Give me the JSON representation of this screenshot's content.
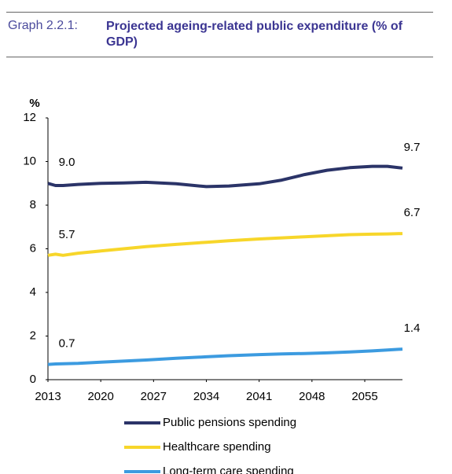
{
  "header": {
    "label": "Graph 2.2.1:",
    "title": "Projected ageing-related public expenditure (% of GDP)"
  },
  "chart_data": {
    "type": "line",
    "y_unit": "%",
    "x": [
      2013,
      2014,
      2015,
      2017,
      2020,
      2023,
      2026,
      2030,
      2034,
      2037,
      2041,
      2044,
      2047,
      2050,
      2053,
      2056,
      2058,
      2060
    ],
    "xlim": [
      2013,
      2060
    ],
    "xticks": [
      2013,
      2020,
      2027,
      2034,
      2041,
      2048,
      2055
    ],
    "ylim": [
      0,
      12
    ],
    "yticks": [
      0,
      2,
      4,
      6,
      8,
      10,
      12
    ],
    "series": [
      {
        "name": "Public pensions spending",
        "color": "#2b3468",
        "values": [
          9.0,
          8.9,
          8.9,
          8.95,
          9.0,
          9.02,
          9.05,
          8.98,
          8.85,
          8.88,
          8.98,
          9.15,
          9.4,
          9.6,
          9.72,
          9.78,
          9.78,
          9.7
        ],
        "value_labels": [
          "9.0",
          null,
          null,
          null,
          null,
          null,
          null,
          null,
          null,
          null,
          null,
          null,
          null,
          null,
          null,
          null,
          null,
          "9.7"
        ]
      },
      {
        "name": "Healthcare spending",
        "color": "#f7d62a",
        "values": [
          5.7,
          5.75,
          5.7,
          5.8,
          5.9,
          6.0,
          6.1,
          6.2,
          6.3,
          6.37,
          6.45,
          6.5,
          6.55,
          6.6,
          6.65,
          6.67,
          6.68,
          6.7
        ],
        "value_labels": [
          "5.7",
          null,
          null,
          null,
          null,
          null,
          null,
          null,
          null,
          null,
          null,
          null,
          null,
          null,
          null,
          null,
          null,
          "6.7"
        ]
      },
      {
        "name": "Long-term care spending",
        "color": "#3c9be0",
        "values": [
          0.7,
          0.72,
          0.73,
          0.75,
          0.8,
          0.85,
          0.9,
          0.98,
          1.05,
          1.1,
          1.15,
          1.18,
          1.2,
          1.23,
          1.27,
          1.32,
          1.36,
          1.4
        ],
        "value_labels": [
          "0.7",
          null,
          null,
          null,
          null,
          null,
          null,
          null,
          null,
          null,
          null,
          null,
          null,
          null,
          null,
          null,
          null,
          "1.4"
        ]
      }
    ]
  }
}
